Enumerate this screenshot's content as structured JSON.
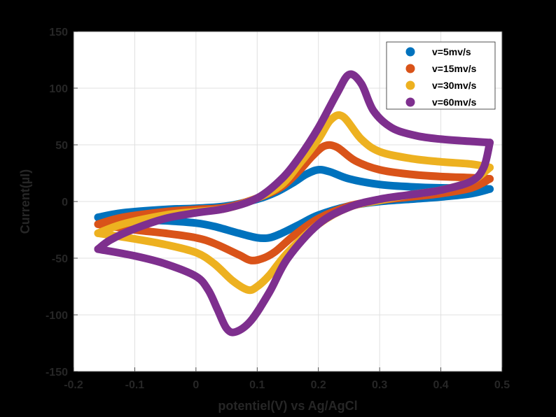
{
  "chart_data": {
    "type": "line",
    "xlabel": "potentiel(V) vs Ag/AgCl",
    "ylabel": "Current(µI)",
    "xlim": [
      -0.2,
      0.5
    ],
    "ylim": [
      -150,
      150
    ],
    "xticks": [
      -0.2,
      -0.1,
      0,
      0.1,
      0.2,
      0.3,
      0.4,
      0.5
    ],
    "yticks": [
      -150,
      -100,
      -50,
      0,
      50,
      100,
      150
    ],
    "xtick_labels": [
      "-0.2",
      "-0.1",
      "0",
      "0.1",
      "0.2",
      "0.3",
      "0.4",
      "0.5"
    ],
    "ytick_labels": [
      "-150",
      "-100",
      "-50",
      "0",
      "50",
      "100",
      "150"
    ],
    "grid": true,
    "legend_position": "top-right",
    "series": [
      {
        "name": "v=5mv/s",
        "color": "#0072BD",
        "forward": [
          [
            -0.16,
            -14
          ],
          [
            -0.12,
            -10
          ],
          [
            -0.05,
            -7
          ],
          [
            0.0,
            -6
          ],
          [
            0.05,
            -4
          ],
          [
            0.1,
            2
          ],
          [
            0.13,
            8
          ],
          [
            0.16,
            17
          ],
          [
            0.18,
            24
          ],
          [
            0.2,
            28
          ],
          [
            0.22,
            26
          ],
          [
            0.25,
            20
          ],
          [
            0.3,
            15
          ],
          [
            0.35,
            13
          ],
          [
            0.4,
            12
          ],
          [
            0.45,
            12
          ],
          [
            0.48,
            11
          ]
        ],
        "reverse": [
          [
            0.48,
            11
          ],
          [
            0.45,
            7
          ],
          [
            0.4,
            4
          ],
          [
            0.35,
            2
          ],
          [
            0.3,
            0
          ],
          [
            0.25,
            -4
          ],
          [
            0.2,
            -12
          ],
          [
            0.17,
            -20
          ],
          [
            0.14,
            -28
          ],
          [
            0.12,
            -32
          ],
          [
            0.1,
            -32
          ],
          [
            0.07,
            -28
          ],
          [
            0.03,
            -22
          ],
          [
            0.0,
            -19
          ],
          [
            -0.05,
            -17
          ],
          [
            -0.1,
            -16
          ],
          [
            -0.16,
            -14
          ]
        ]
      },
      {
        "name": "v=15mv/s",
        "color": "#D95319",
        "forward": [
          [
            -0.16,
            -20
          ],
          [
            -0.12,
            -14
          ],
          [
            -0.05,
            -9
          ],
          [
            0.0,
            -7
          ],
          [
            0.05,
            -5
          ],
          [
            0.1,
            3
          ],
          [
            0.14,
            13
          ],
          [
            0.17,
            28
          ],
          [
            0.19,
            40
          ],
          [
            0.21,
            49
          ],
          [
            0.23,
            48
          ],
          [
            0.26,
            36
          ],
          [
            0.3,
            28
          ],
          [
            0.35,
            24
          ],
          [
            0.4,
            22
          ],
          [
            0.45,
            21
          ],
          [
            0.48,
            20
          ]
        ],
        "reverse": [
          [
            0.48,
            20
          ],
          [
            0.45,
            12
          ],
          [
            0.4,
            7
          ],
          [
            0.35,
            4
          ],
          [
            0.3,
            1
          ],
          [
            0.25,
            -4
          ],
          [
            0.2,
            -15
          ],
          [
            0.16,
            -30
          ],
          [
            0.13,
            -44
          ],
          [
            0.11,
            -50
          ],
          [
            0.09,
            -52
          ],
          [
            0.07,
            -47
          ],
          [
            0.03,
            -37
          ],
          [
            0.0,
            -32
          ],
          [
            -0.05,
            -28
          ],
          [
            -0.1,
            -25
          ],
          [
            -0.16,
            -20
          ]
        ]
      },
      {
        "name": "v=30mv/s",
        "color": "#EDB120",
        "forward": [
          [
            -0.16,
            -28
          ],
          [
            -0.12,
            -20
          ],
          [
            -0.05,
            -12
          ],
          [
            0.0,
            -9
          ],
          [
            0.05,
            -6
          ],
          [
            0.1,
            3
          ],
          [
            0.14,
            15
          ],
          [
            0.17,
            34
          ],
          [
            0.2,
            55
          ],
          [
            0.22,
            72
          ],
          [
            0.24,
            75
          ],
          [
            0.27,
            55
          ],
          [
            0.3,
            44
          ],
          [
            0.35,
            38
          ],
          [
            0.4,
            35
          ],
          [
            0.45,
            33
          ],
          [
            0.48,
            30
          ]
        ],
        "reverse": [
          [
            0.48,
            30
          ],
          [
            0.45,
            18
          ],
          [
            0.4,
            10
          ],
          [
            0.35,
            6
          ],
          [
            0.3,
            1
          ],
          [
            0.25,
            -5
          ],
          [
            0.2,
            -20
          ],
          [
            0.15,
            -45
          ],
          [
            0.12,
            -65
          ],
          [
            0.1,
            -75
          ],
          [
            0.085,
            -78
          ],
          [
            0.06,
            -70
          ],
          [
            0.03,
            -55
          ],
          [
            0.0,
            -45
          ],
          [
            -0.05,
            -38
          ],
          [
            -0.1,
            -33
          ],
          [
            -0.16,
            -28
          ]
        ]
      },
      {
        "name": "v=60mv/s",
        "color": "#7E2F8E",
        "forward": [
          [
            -0.16,
            -42
          ],
          [
            -0.14,
            -34
          ],
          [
            -0.1,
            -24
          ],
          [
            -0.05,
            -15
          ],
          [
            0.0,
            -10
          ],
          [
            0.05,
            -6
          ],
          [
            0.1,
            3
          ],
          [
            0.14,
            20
          ],
          [
            0.17,
            40
          ],
          [
            0.2,
            65
          ],
          [
            0.23,
            95
          ],
          [
            0.25,
            112
          ],
          [
            0.27,
            104
          ],
          [
            0.29,
            80
          ],
          [
            0.32,
            65
          ],
          [
            0.36,
            58
          ],
          [
            0.4,
            55
          ],
          [
            0.45,
            53
          ],
          [
            0.48,
            52
          ]
        ],
        "reverse": [
          [
            0.48,
            52
          ],
          [
            0.47,
            30
          ],
          [
            0.45,
            18
          ],
          [
            0.4,
            10
          ],
          [
            0.35,
            6
          ],
          [
            0.3,
            2
          ],
          [
            0.25,
            -5
          ],
          [
            0.2,
            -20
          ],
          [
            0.15,
            -50
          ],
          [
            0.12,
            -80
          ],
          [
            0.09,
            -105
          ],
          [
            0.065,
            -115
          ],
          [
            0.05,
            -112
          ],
          [
            0.035,
            -95
          ],
          [
            0.02,
            -78
          ],
          [
            0.0,
            -66
          ],
          [
            -0.05,
            -55
          ],
          [
            -0.1,
            -48
          ],
          [
            -0.16,
            -42
          ]
        ]
      }
    ]
  }
}
